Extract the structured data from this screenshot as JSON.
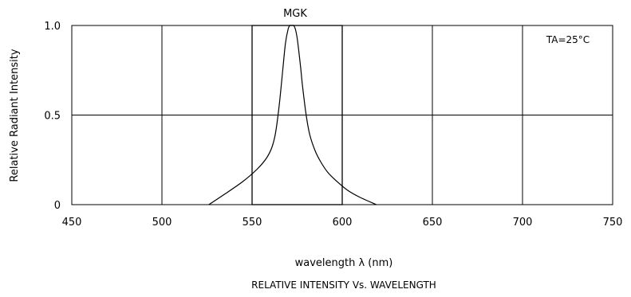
{
  "chart_data": {
    "type": "line",
    "title": "MGK",
    "subtitle": "RELATIVE INTENSITY Vs. WAVELENGTH",
    "xlabel": "wavelength λ (nm)",
    "ylabel": "Relative Radiant Intensity",
    "annotation": "TA=25°C",
    "xlim": [
      450,
      750
    ],
    "ylim": [
      0,
      1.0
    ],
    "x_ticks": [
      "450",
      "500",
      "550",
      "600",
      "650",
      "700",
      "750"
    ],
    "y_ticks": [
      "0",
      "0.5",
      "1.0"
    ],
    "grid": true,
    "series": [
      {
        "x": [
          526,
          535,
          545,
          553,
          558,
          561,
          563,
          565,
          567,
          568.5,
          570,
          571,
          572,
          573,
          574,
          575,
          576,
          577,
          578,
          580,
          582,
          585,
          588,
          592,
          597,
          603,
          610,
          619
        ],
        "y": [
          0,
          0.06,
          0.13,
          0.2,
          0.26,
          0.32,
          0.4,
          0.55,
          0.75,
          0.9,
          0.98,
          1.0,
          1.0,
          1.0,
          0.98,
          0.93,
          0.85,
          0.76,
          0.66,
          0.5,
          0.39,
          0.3,
          0.24,
          0.18,
          0.13,
          0.08,
          0.04,
          0
        ]
      }
    ],
    "highlight_box": {
      "x_range": [
        550,
        600
      ],
      "y_range": [
        0,
        1.0
      ]
    }
  }
}
